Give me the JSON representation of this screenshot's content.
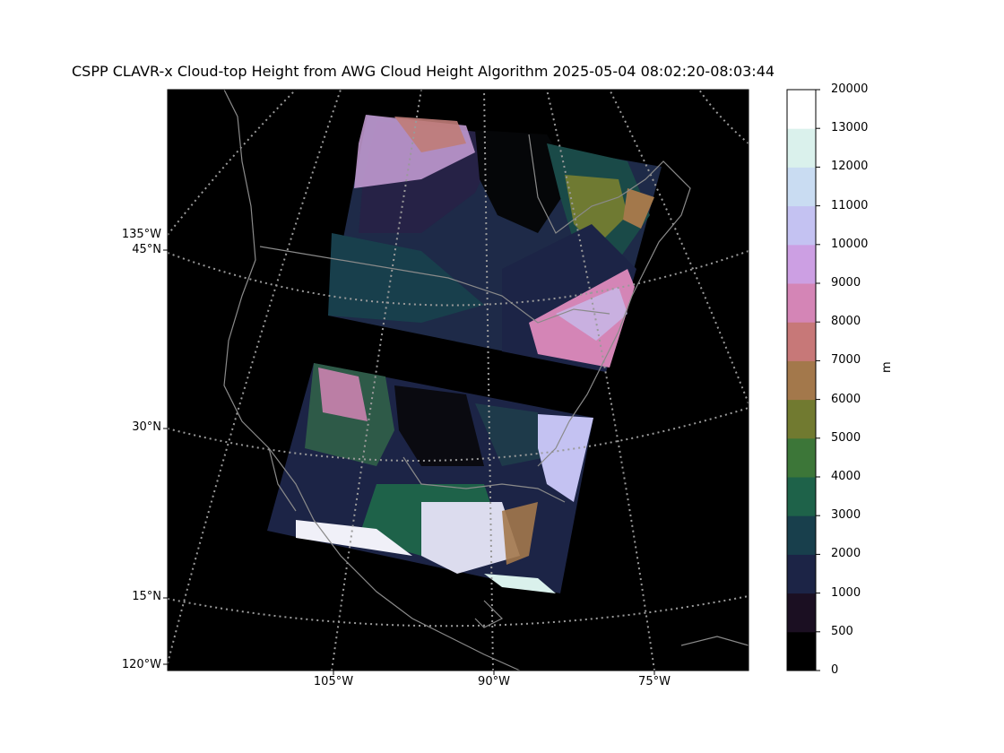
{
  "title": "CSPP CLAVR-x Cloud-top Height from AWG Cloud Height Algorithm 2025-05-04 08:02:20-08:03:44",
  "map": {
    "lat_labels": [
      {
        "text": "135°W",
        "sub": "45°N"
      },
      {
        "text": "30°N"
      },
      {
        "text": "15°N"
      },
      {
        "text": "120°W"
      }
    ],
    "lon_labels": [
      "105°W",
      "90°W",
      "75°W"
    ]
  },
  "colorbar": {
    "unit": "m",
    "ticks": [
      "0",
      "500",
      "1000",
      "2000",
      "3000",
      "4000",
      "5000",
      "6000",
      "7000",
      "8000",
      "9000",
      "10000",
      "11000",
      "12000",
      "13000",
      "20000"
    ],
    "colors": [
      "#000000",
      "#1b0f22",
      "#1c2446",
      "#183f4c",
      "#1e6249",
      "#3c7638",
      "#717a30",
      "#a3784b",
      "#c77878",
      "#d485b6",
      "#cc9fe3",
      "#c4c2f2",
      "#c9dcf2",
      "#daf1ec",
      "#ffffff"
    ]
  }
}
